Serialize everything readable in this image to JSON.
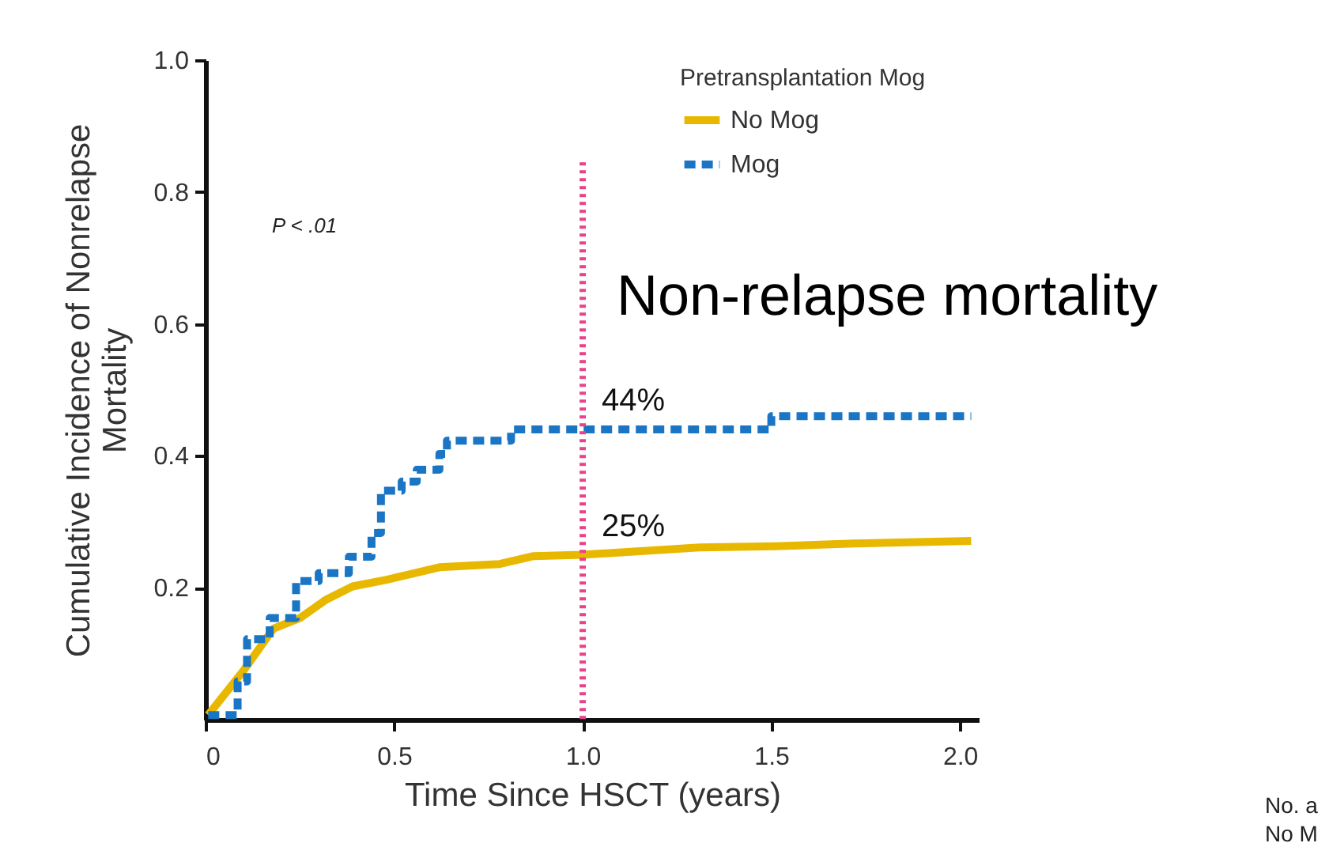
{
  "chart_data": {
    "type": "line",
    "title": "Non-relapse mortality",
    "xlabel": "Time Since HSCT (years)",
    "ylabel": "Cumulative Incidence of Nonrelapse Mortality",
    "legend_title": "Pretransplantation Mog",
    "xlim": [
      0,
      2.05
    ],
    "ylim": [
      0,
      1.0
    ],
    "xticks": [
      {
        "value": 0,
        "label": "0"
      },
      0.5,
      {
        "value": 1,
        "label": "1.0"
      },
      1.5,
      {
        "value": 2,
        "label": "2.0"
      }
    ],
    "yticks": [
      0.2,
      0.4,
      0.6,
      0.8,
      {
        "value": 1,
        "label": "1.0"
      }
    ],
    "grid": false,
    "legend": "top right",
    "marker": "none",
    "series": [
      {
        "name": "No Mog",
        "type": "line",
        "line_style": "solid",
        "color": "#e8b800",
        "x": [
          0.007,
          0.1,
          0.18,
          0.25,
          0.32,
          0.39,
          0.48,
          0.62,
          0.78,
          0.87,
          1.0,
          1.31,
          1.51,
          1.72,
          2.03
        ],
        "values": [
          0.007,
          0.074,
          0.138,
          0.154,
          0.182,
          0.202,
          0.212,
          0.231,
          0.236,
          0.248,
          0.25,
          0.261,
          0.263,
          0.267,
          0.271
        ]
      },
      {
        "name": "Mog",
        "type": "step",
        "line_style": "dashed",
        "color": "#1a75c4",
        "x": [
          0.007,
          0.085,
          0.11,
          0.17,
          0.24,
          0.3,
          0.38,
          0.44,
          0.465,
          0.52,
          0.56,
          0.62,
          0.64,
          0.81,
          1.5,
          2.03
        ],
        "values": [
          0.007,
          0.058,
          0.122,
          0.154,
          0.21,
          0.222,
          0.247,
          0.283,
          0.347,
          0.361,
          0.379,
          0.403,
          0.423,
          0.44,
          0.46,
          0.46
        ]
      }
    ],
    "ref_lines": [
      {
        "axis": "x",
        "value": 1.0,
        "color": "#e8428c",
        "line_style": "dotted"
      }
    ],
    "annotations": [
      "P < .01",
      {
        "text": "44%",
        "x": 1.0,
        "y": 0.44
      },
      {
        "text": "25%",
        "x": 1.0,
        "y": 0.25
      },
      "No. a",
      "No M"
    ]
  }
}
